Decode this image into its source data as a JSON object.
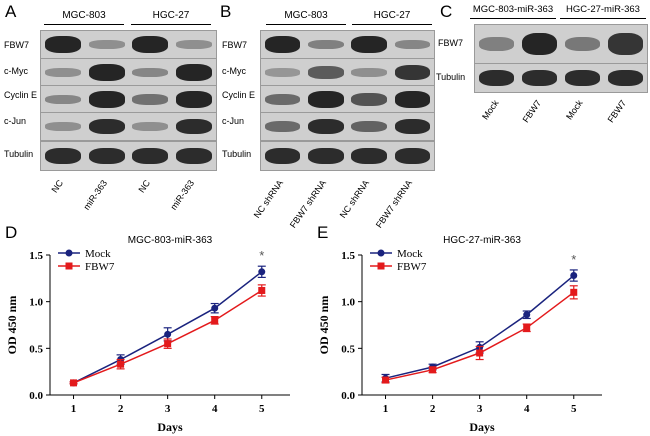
{
  "panel_labels": {
    "A": "A",
    "B": "B",
    "C": "C",
    "D": "D",
    "E": "E"
  },
  "panelA": {
    "groups": [
      "MGC-803",
      "HGC-27"
    ],
    "rows": [
      "FBW7",
      "c-Myc",
      "Cyclin E",
      "c-Jun",
      "Tubulin"
    ],
    "lanes": [
      "NC",
      "miR-363",
      "NC",
      "miR-363"
    ],
    "bands": [
      [
        0.95,
        0.25,
        0.95,
        0.25
      ],
      [
        0.25,
        0.95,
        0.3,
        0.95
      ],
      [
        0.3,
        0.95,
        0.45,
        0.95
      ],
      [
        0.25,
        0.9,
        0.25,
        0.9
      ],
      [
        0.9,
        0.9,
        0.9,
        0.9
      ]
    ]
  },
  "panelB": {
    "groups": [
      "MGC-803",
      "HGC-27"
    ],
    "rows": [
      "FBW7",
      "c-Myc",
      "Cyclin E",
      "c-Jun",
      "Tubulin"
    ],
    "lanes": [
      "NC shRNA",
      "FBW7 shRNA",
      "NC shRNA",
      "FBW7 shRNA"
    ],
    "bands": [
      [
        0.95,
        0.35,
        0.95,
        0.3
      ],
      [
        0.2,
        0.6,
        0.25,
        0.85
      ],
      [
        0.5,
        0.95,
        0.65,
        0.95
      ],
      [
        0.5,
        0.9,
        0.55,
        0.9
      ],
      [
        0.9,
        0.9,
        0.9,
        0.9
      ]
    ]
  },
  "panelC": {
    "groups": [
      "MGC-803-miR-363",
      "HGC-27-miR-363"
    ],
    "rows": [
      "FBW7",
      "Tubulin"
    ],
    "lanes": [
      "Mock",
      "FBW7",
      "Mock",
      "FBW7"
    ],
    "bands": [
      [
        0.35,
        0.95,
        0.4,
        0.85
      ],
      [
        0.9,
        0.9,
        0.9,
        0.9
      ]
    ]
  },
  "colors": {
    "mock": "#1a237e",
    "fbw7": "#e31a1c"
  },
  "chart_data": [
    {
      "type": "line",
      "title": "MGC-803-miR-363",
      "xlabel": "Days",
      "ylabel": "OD 450 nm",
      "x": [
        1,
        2,
        3,
        4,
        5
      ],
      "xlim": [
        0.5,
        5.6
      ],
      "ylim": [
        0,
        1.5
      ],
      "yticks": [
        "0.0",
        "0.5",
        "1.0",
        "1.5"
      ],
      "legend_position": "top-left",
      "series": [
        {
          "name": "Mock",
          "values": [
            0.13,
            0.38,
            0.65,
            0.93,
            1.32
          ],
          "errors": [
            0.01,
            0.05,
            0.07,
            0.05,
            0.06
          ]
        },
        {
          "name": "FBW7",
          "values": [
            0.13,
            0.33,
            0.55,
            0.8,
            1.12
          ],
          "errors": [
            0.01,
            0.05,
            0.05,
            0.04,
            0.06
          ]
        }
      ],
      "annotations": [
        {
          "text": "*",
          "x": 5
        }
      ]
    },
    {
      "type": "line",
      "title": "HGC-27-miR-363",
      "xlabel": "Days",
      "ylabel": "OD 450 nm",
      "x": [
        1,
        2,
        3,
        4,
        5
      ],
      "xlim": [
        0.5,
        5.6
      ],
      "ylim": [
        0,
        1.5
      ],
      "yticks": [
        "0.0",
        "0.5",
        "1.0",
        "1.5"
      ],
      "legend_position": "top-left",
      "series": [
        {
          "name": "Mock",
          "values": [
            0.18,
            0.3,
            0.51,
            0.86,
            1.28
          ],
          "errors": [
            0.04,
            0.03,
            0.06,
            0.04,
            0.06
          ]
        },
        {
          "name": "FBW7",
          "values": [
            0.16,
            0.27,
            0.45,
            0.72,
            1.1
          ],
          "errors": [
            0.03,
            0.03,
            0.07,
            0.04,
            0.07
          ]
        }
      ],
      "annotations": [
        {
          "text": "*",
          "x": 5
        }
      ]
    }
  ]
}
